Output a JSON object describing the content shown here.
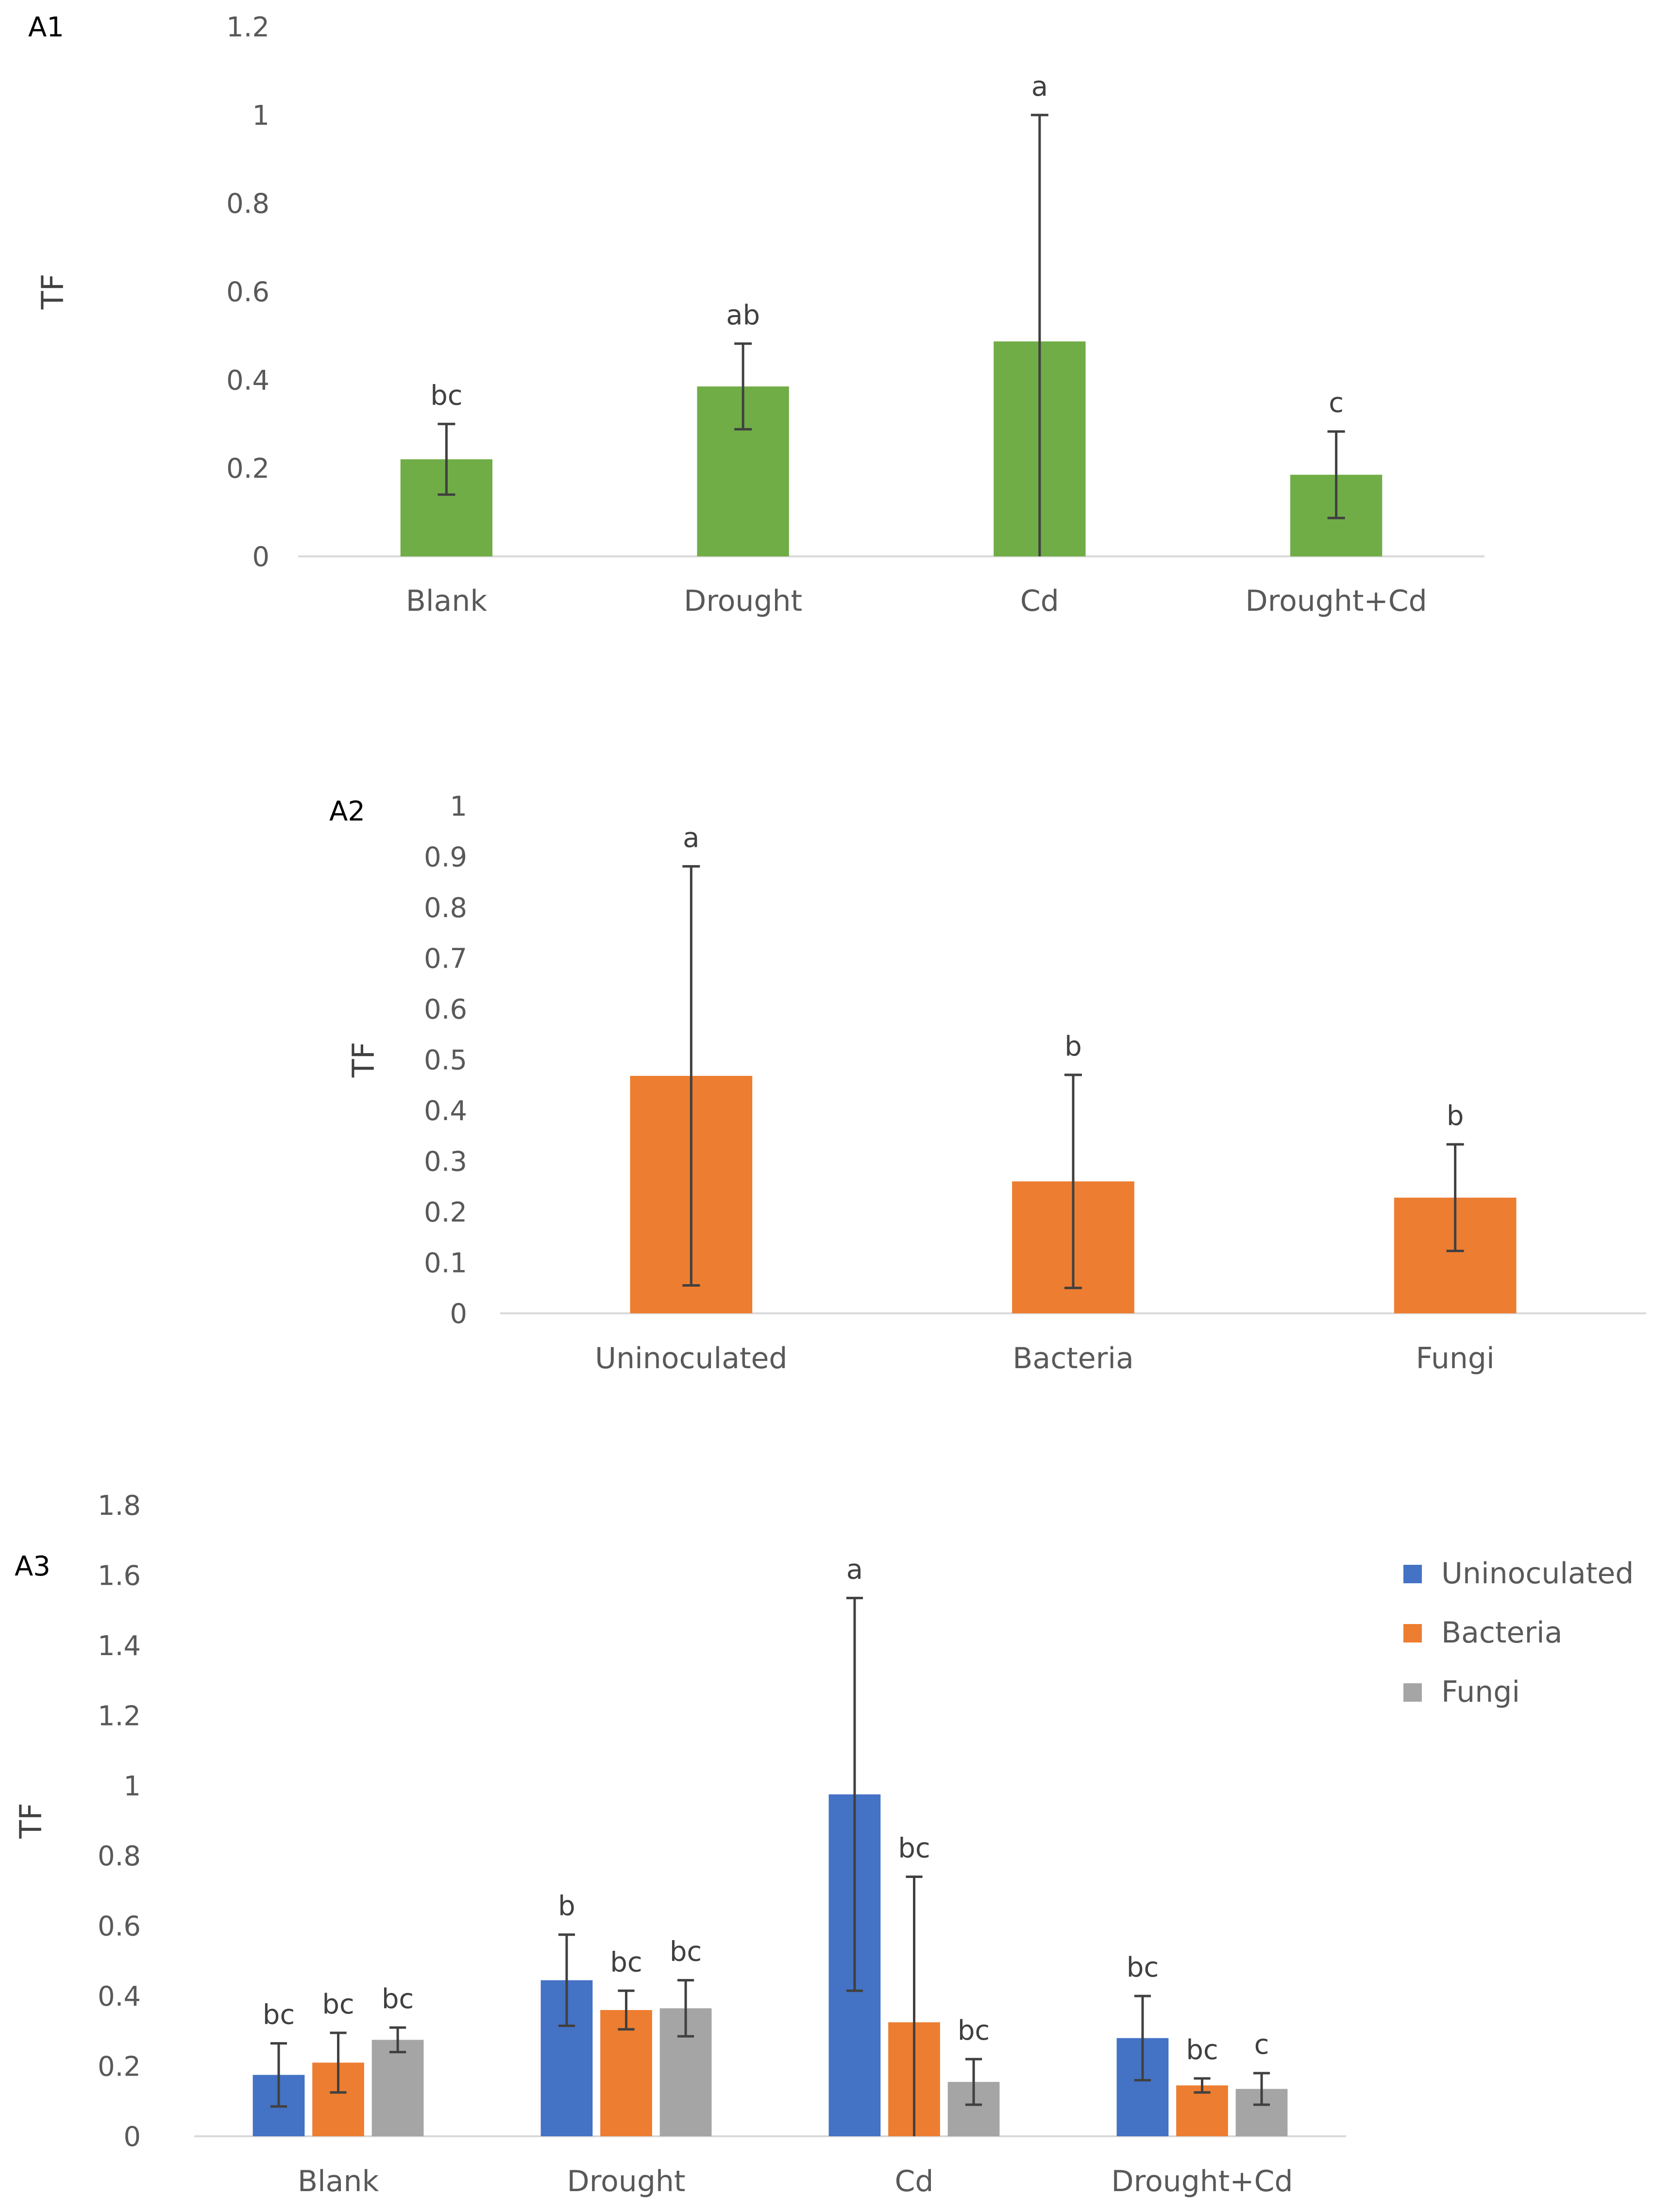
{
  "chart_data": [
    {
      "type": "bar",
      "panel_label": "A1",
      "ylabel": "TF",
      "ylim": [
        0,
        1.2
      ],
      "yticks": [
        "0",
        "0.2",
        "0.4",
        "0.6",
        "0.8",
        "1",
        "1.2"
      ],
      "categories": [
        "Blank",
        "Drought",
        "Cd",
        "Drought+Cd"
      ],
      "series": [
        {
          "values": [
            0.22,
            0.385,
            0.487,
            0.185
          ],
          "error": [
            0.08,
            0.097,
            0.513,
            0.098
          ],
          "letters": [
            "bc",
            "ab",
            "a",
            "c"
          ],
          "color": "#70ad47"
        }
      ]
    },
    {
      "type": "bar",
      "panel_label": "A2",
      "ylabel": "TF",
      "ylim": [
        0,
        1
      ],
      "yticks": [
        "0",
        "0.1",
        "0.2",
        "0.3",
        "0.4",
        "0.5",
        "0.6",
        "0.7",
        "0.8",
        "0.9",
        "1"
      ],
      "categories": [
        "Uninoculated",
        "Bacteria",
        "Fungi"
      ],
      "series": [
        {
          "values": [
            0.468,
            0.26,
            0.228
          ],
          "error": [
            0.413,
            0.21,
            0.105
          ],
          "letters": [
            "a",
            "b",
            "b"
          ],
          "color": "#ed7d31"
        }
      ]
    },
    {
      "type": "bar",
      "panel_label": "A3",
      "ylabel": "TF",
      "ylim": [
        0,
        1.8
      ],
      "yticks": [
        "0",
        "0.2",
        "0.4",
        "0.6",
        "0.8",
        "1",
        "1.2",
        "1.4",
        "1.6",
        "1.8"
      ],
      "categories": [
        "Blank",
        "Drought",
        "Cd",
        "Drought+Cd"
      ],
      "legend_position": "top-right",
      "series": [
        {
          "name": "Uninoculated",
          "color": "#4472c4",
          "values": [
            0.175,
            0.445,
            0.975,
            0.28
          ],
          "error": [
            0.09,
            0.13,
            0.56,
            0.12
          ],
          "letters": [
            "bc",
            "b",
            "a",
            "bc"
          ]
        },
        {
          "name": "Bacteria",
          "color": "#ed7d31",
          "values": [
            0.21,
            0.36,
            0.325,
            0.145
          ],
          "error": [
            0.085,
            0.055,
            0.415,
            0.02
          ],
          "letters": [
            "bc",
            "bc",
            "bc",
            "bc"
          ]
        },
        {
          "name": "Fungi",
          "color": "#a5a5a5",
          "values": [
            0.275,
            0.365,
            0.155,
            0.135
          ],
          "error": [
            0.035,
            0.08,
            0.065,
            0.045
          ],
          "letters": [
            "bc",
            "bc",
            "bc",
            "c"
          ]
        }
      ]
    }
  ]
}
